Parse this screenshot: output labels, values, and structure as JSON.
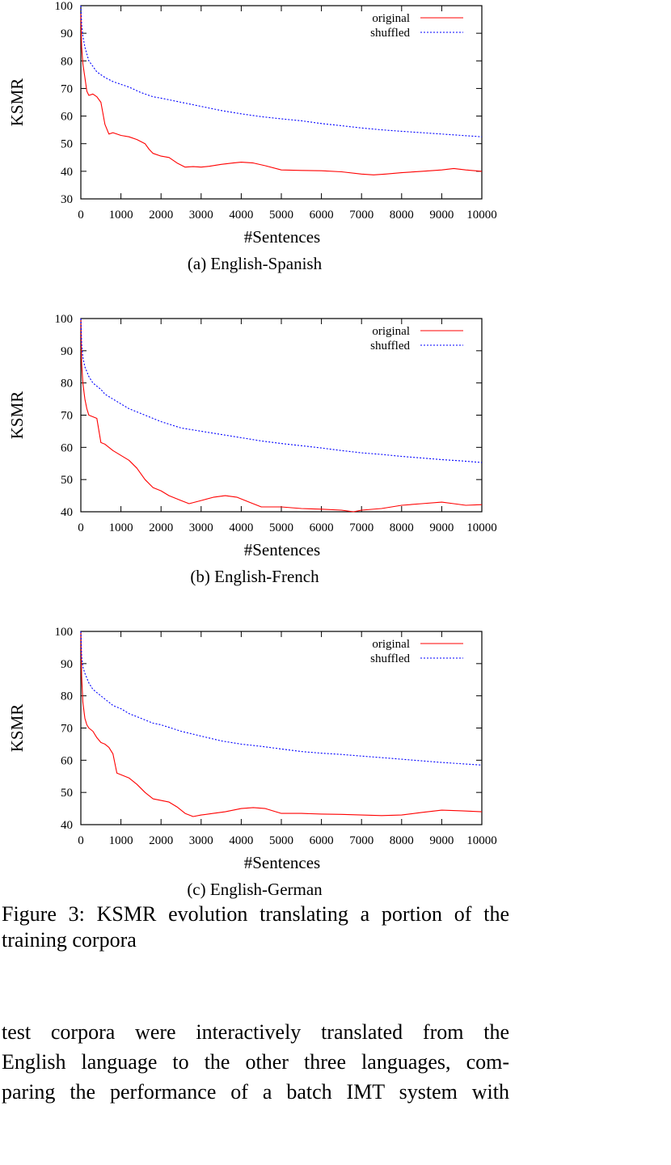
{
  "figure": {
    "caption": "Figure 3:  KSMR evolution translating a portion of the training corpora"
  },
  "body_lines": [
    "test corpora were interactively translated from the",
    "English language to the other three languages, com-",
    "paring the performance of a batch IMT system with"
  ],
  "colors": {
    "original": "#ff0000",
    "shuffled": "#0000ff",
    "axis": "#000000"
  },
  "chart_data": [
    {
      "type": "line",
      "subcaption": "(a) English-Spanish",
      "xlabel": "#Sentences",
      "ylabel": "KSMR",
      "xlim": [
        0,
        10000
      ],
      "ylim": [
        30,
        100
      ],
      "xticks": [
        "0",
        "1000",
        "2000",
        "3000",
        "4000",
        "5000",
        "6000",
        "7000",
        "8000",
        "9000",
        "10000"
      ],
      "yticks": [
        "30",
        "40",
        "50",
        "60",
        "70",
        "80",
        "90",
        "100"
      ],
      "legend_position": "top-right",
      "grid": false,
      "series": [
        {
          "name": "original",
          "style": "solid",
          "x": [
            0,
            20,
            50,
            100,
            150,
            200,
            300,
            400,
            500,
            600,
            700,
            800,
            1000,
            1200,
            1400,
            1600,
            1700,
            1800,
            2000,
            2200,
            2400,
            2600,
            2800,
            3000,
            3200,
            3500,
            3800,
            4000,
            4300,
            4600,
            5000,
            5500,
            6000,
            6500,
            7000,
            7300,
            7600,
            8000,
            8500,
            9000,
            9300,
            9600,
            10000
          ],
          "y": [
            97,
            85,
            79,
            74,
            69,
            67.5,
            68,
            67,
            65,
            57,
            53.5,
            54,
            53,
            52.5,
            51.5,
            50,
            48,
            46.5,
            45.5,
            45,
            43,
            41.5,
            41.7,
            41.5,
            41.8,
            42.5,
            43,
            43.3,
            43,
            42,
            40.5,
            40.3,
            40.2,
            39.8,
            39,
            38.7,
            39,
            39.5,
            40,
            40.5,
            41,
            40.5,
            40
          ]
        },
        {
          "name": "shuffled",
          "style": "dotted",
          "x": [
            0,
            20,
            50,
            100,
            200,
            300,
            400,
            500,
            600,
            800,
            1000,
            1200,
            1500,
            1800,
            2000,
            2500,
            3000,
            3500,
            4000,
            4500,
            5000,
            5500,
            6000,
            6500,
            7000,
            7500,
            8000,
            8500,
            9000,
            9500,
            10000
          ],
          "y": [
            100,
            93,
            89,
            85,
            80,
            78,
            76,
            75,
            74,
            72.5,
            71.5,
            70.5,
            68.5,
            67,
            66.5,
            65,
            63.5,
            62,
            60.8,
            59.8,
            59,
            58.3,
            57.3,
            56.5,
            55.7,
            55,
            54.5,
            54,
            53.5,
            53,
            52.5
          ]
        }
      ]
    },
    {
      "type": "line",
      "subcaption": "(b) English-French",
      "xlabel": "#Sentences",
      "ylabel": "KSMR",
      "xlim": [
        0,
        10000
      ],
      "ylim": [
        40,
        100
      ],
      "xticks": [
        "0",
        "1000",
        "2000",
        "3000",
        "4000",
        "5000",
        "6000",
        "7000",
        "8000",
        "9000",
        "10000"
      ],
      "yticks": [
        "40",
        "50",
        "60",
        "70",
        "80",
        "90",
        "100"
      ],
      "legend_position": "top-right",
      "grid": false,
      "series": [
        {
          "name": "original",
          "style": "solid",
          "x": [
            0,
            20,
            50,
            100,
            150,
            200,
            300,
            400,
            500,
            600,
            800,
            1000,
            1200,
            1400,
            1600,
            1800,
            2000,
            2200,
            2500,
            2700,
            3000,
            3300,
            3600,
            3900,
            4200,
            4500,
            5000,
            5500,
            6000,
            6500,
            6800,
            7000,
            7500,
            8000,
            8500,
            9000,
            9300,
            9600,
            10000
          ],
          "y": [
            100,
            86,
            80,
            75,
            72,
            70,
            69.5,
            69,
            61.5,
            61,
            59,
            57.5,
            56,
            53.5,
            50,
            47.5,
            46.5,
            45,
            43.5,
            42.5,
            43.5,
            44.5,
            45,
            44.5,
            43,
            41.5,
            41.5,
            41,
            40.8,
            40.5,
            40,
            40.5,
            41,
            42,
            42.5,
            43,
            42.5,
            42,
            42.2
          ]
        },
        {
          "name": "shuffled",
          "style": "dotted",
          "x": [
            0,
            20,
            50,
            100,
            200,
            300,
            400,
            500,
            600,
            800,
            1000,
            1200,
            1500,
            1800,
            2000,
            2500,
            3000,
            3500,
            4000,
            4500,
            5000,
            5500,
            6000,
            6500,
            7000,
            7500,
            8000,
            8500,
            9000,
            9500,
            10000
          ],
          "y": [
            100,
            92,
            88,
            85,
            82,
            80,
            79,
            78,
            76.5,
            75,
            73.5,
            72,
            70.5,
            69,
            68,
            66,
            65,
            64,
            63,
            62,
            61.2,
            60.5,
            59.8,
            59,
            58.3,
            57.8,
            57.2,
            56.7,
            56.2,
            55.8,
            55.3
          ]
        }
      ]
    },
    {
      "type": "line",
      "subcaption": "(c) English-German",
      "xlabel": "#Sentences",
      "ylabel": "KSMR",
      "xlim": [
        0,
        10000
      ],
      "ylim": [
        40,
        100
      ],
      "xticks": [
        "0",
        "1000",
        "2000",
        "3000",
        "4000",
        "5000",
        "6000",
        "7000",
        "8000",
        "9000",
        "10000"
      ],
      "yticks": [
        "40",
        "50",
        "60",
        "70",
        "80",
        "90",
        "100"
      ],
      "legend_position": "top-right",
      "grid": false,
      "series": [
        {
          "name": "original",
          "style": "solid",
          "x": [
            0,
            20,
            50,
            100,
            150,
            200,
            300,
            400,
            500,
            600,
            700,
            800,
            900,
            1000,
            1200,
            1400,
            1600,
            1800,
            2000,
            2200,
            2400,
            2600,
            2800,
            3000,
            3300,
            3600,
            4000,
            4300,
            4600,
            5000,
            5500,
            6000,
            6500,
            7000,
            7500,
            8000,
            8500,
            9000,
            9500,
            10000
          ],
          "y": [
            100,
            86,
            78,
            73,
            71,
            70,
            69,
            67,
            65.5,
            65,
            64,
            62,
            56,
            55.5,
            54.5,
            52.5,
            50,
            48,
            47.5,
            47,
            45.5,
            43.5,
            42.5,
            43,
            43.5,
            44,
            45,
            45.3,
            45,
            43.5,
            43.5,
            43.3,
            43.2,
            43,
            42.8,
            43,
            43.8,
            44.5,
            44.3,
            44
          ]
        },
        {
          "name": "shuffled",
          "style": "dotted",
          "x": [
            0,
            20,
            50,
            100,
            200,
            300,
            400,
            500,
            600,
            800,
            1000,
            1200,
            1500,
            1800,
            2000,
            2500,
            3000,
            3500,
            4000,
            4500,
            5000,
            5500,
            6000,
            6500,
            7000,
            7500,
            8000,
            8500,
            9000,
            9500,
            10000
          ],
          "y": [
            100,
            92,
            89,
            87,
            84,
            82,
            81,
            80,
            79,
            77,
            76,
            74.5,
            73,
            71.5,
            71,
            69,
            67.5,
            66,
            65,
            64.3,
            63.5,
            62.7,
            62.2,
            61.8,
            61.3,
            60.8,
            60.3,
            59.8,
            59.3,
            58.9,
            58.5
          ]
        }
      ]
    }
  ]
}
